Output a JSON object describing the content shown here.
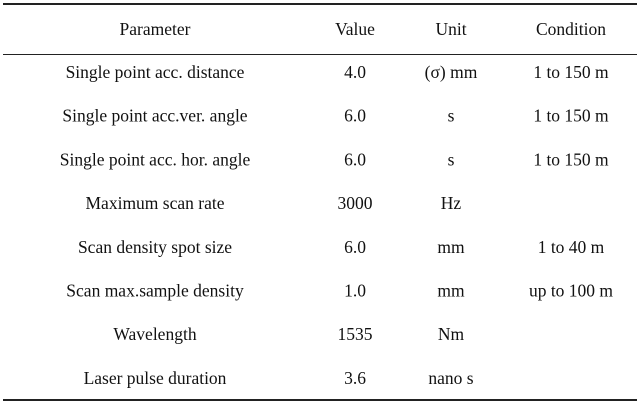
{
  "table": {
    "header": [
      "Parameter",
      "Value",
      "Unit",
      "Condition"
    ],
    "rows": [
      [
        "Single point acc. distance",
        "4.0",
        "(σ) mm",
        "1 to 150 m"
      ],
      [
        "Single point acc.ver. angle",
        "6.0",
        "s",
        "1 to 150 m"
      ],
      [
        "Single point acc. hor. angle",
        "6.0",
        "s",
        "1 to 150 m"
      ],
      [
        "Maximum scan rate",
        "3000",
        "Hz",
        null
      ],
      [
        "Scan density spot size",
        "6.0",
        "mm",
        "1 to 40 m"
      ],
      [
        "Scan max.sample density",
        "1.0",
        "mm",
        "up to 100 m"
      ],
      [
        "Wavelength",
        "1535",
        "Nm",
        null
      ],
      [
        "Laser pulse duration",
        "3.6",
        "nano s",
        null
      ]
    ]
  }
}
